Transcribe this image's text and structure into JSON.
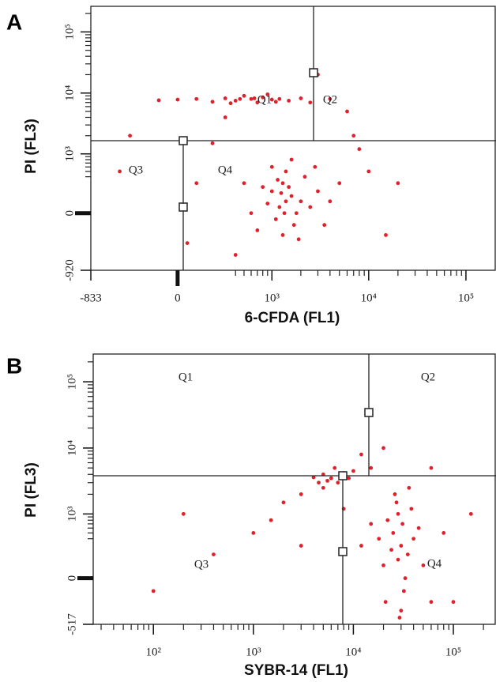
{
  "chart_data": [
    {
      "type": "scatter",
      "panel": "A",
      "x_label": "6-CFDA (FL1)",
      "y_label": "PI (FL3)",
      "quadrant_labels": [
        "Q1",
        "Q2",
        "Q3",
        "Q4"
      ],
      "xscale": "biexponential",
      "yscale": "biexponential",
      "color": "#e0202a",
      "xlim": [
        -833,
        200000
      ],
      "ylim": [
        -920,
        262144
      ],
      "xticks": [
        -833,
        0,
        {
          "value": 1000,
          "label": "10³"
        },
        {
          "value": 10000,
          "label": "10⁴"
        },
        {
          "value": 100000,
          "label": "10⁵"
        }
      ],
      "yticks": [
        -920,
        0,
        {
          "value": 1000,
          "label": "10³"
        },
        {
          "value": 10000,
          "label": "10⁴"
        },
        {
          "value": 100000,
          "label": "10⁵"
        }
      ],
      "x": [
        1400,
        1200,
        1600,
        1000,
        1800,
        1300,
        1100,
        1500,
        2000,
        900,
        1700,
        1250,
        2500,
        800,
        3000,
        1400,
        1300,
        2200,
        600,
        4000,
        1000,
        1900,
        5000,
        700,
        1600,
        3500,
        1150,
        2800,
        500,
        1350,
        600,
        400,
        800,
        300,
        1000,
        200,
        1200,
        500,
        700,
        100,
        1500,
        0,
        900,
        350,
        2000,
        1100,
        -100,
        2500,
        650,
        450,
        3000,
        -300,
        200,
        100,
        7000,
        10000,
        20000,
        15000,
        400,
        6000,
        50,
        4000,
        8000,
        300,
        -400
      ],
      "y": [
        100,
        50,
        150,
        200,
        0,
        300,
        -50,
        250,
        100,
        80,
        -100,
        180,
        50,
        250,
        200,
        500,
        -200,
        400,
        0,
        100,
        600,
        -250,
        300,
        -150,
        800,
        -100,
        350,
        600,
        300,
        0,
        8000,
        7500,
        8500,
        8200,
        7800,
        7200,
        8000,
        9000,
        7000,
        8000,
        7500,
        7800,
        9500,
        6800,
        8200,
        7200,
        7600,
        7000,
        8200,
        8000,
        20000,
        2000,
        1500,
        300,
        2000,
        500,
        300,
        -200,
        -500,
        5000,
        -300,
        8000,
        1200,
        4000,
        500
      ]
    },
    {
      "type": "scatter",
      "panel": "B",
      "x_label": "SYBR-14 (FL1)",
      "y_label": "PI (FL3)",
      "quadrant_labels": [
        "Q1",
        "Q2",
        "Q3",
        "Q4"
      ],
      "xscale": "log",
      "yscale": "biexponential",
      "color": "#e0202a",
      "xlim": [
        25,
        262144
      ],
      "ylim": [
        -517,
        262144
      ],
      "xticks": [
        {
          "value": 100,
          "label": "10²"
        },
        {
          "value": 1000,
          "label": "10³"
        },
        {
          "value": 10000,
          "label": "10⁴"
        },
        {
          "value": 100000,
          "label": "10⁵"
        }
      ],
      "yticks": [
        -517,
        0,
        {
          "value": 1000,
          "label": "10³"
        },
        {
          "value": 10000,
          "label": "10⁴"
        },
        {
          "value": 100000,
          "label": "10⁵"
        }
      ],
      "x": [
        30000,
        25000,
        35000,
        28000,
        32000,
        22000,
        40000,
        27000,
        30000,
        20000,
        45000,
        26000,
        33000,
        18000,
        38000,
        29000,
        24000,
        50000,
        15000,
        31000,
        60000,
        21000,
        36000,
        12000,
        80000,
        28000,
        6000,
        5000,
        7000,
        5500,
        8000,
        4500,
        6500,
        9000,
        5000,
        7500,
        10000,
        4000,
        3000,
        2000,
        1500,
        400,
        100,
        1000,
        12000,
        20000,
        15000,
        3000,
        8000,
        200,
        150000,
        100000,
        60000
      ],
      "y": [
        300,
        500,
        200,
        1000,
        -100,
        800,
        400,
        1500,
        -300,
        100,
        600,
        2000,
        0,
        400,
        1200,
        -400,
        250,
        100,
        700,
        700,
        -200,
        -200,
        2500,
        300,
        500,
        150,
        3500,
        4000,
        3000,
        3200,
        4200,
        3000,
        5000,
        3500,
        2500,
        3800,
        4500,
        3600,
        2000,
        1500,
        800,
        200,
        -100,
        500,
        8000,
        10000,
        5000,
        300,
        1200,
        1000,
        1000,
        -200,
        5000
      ]
    }
  ]
}
